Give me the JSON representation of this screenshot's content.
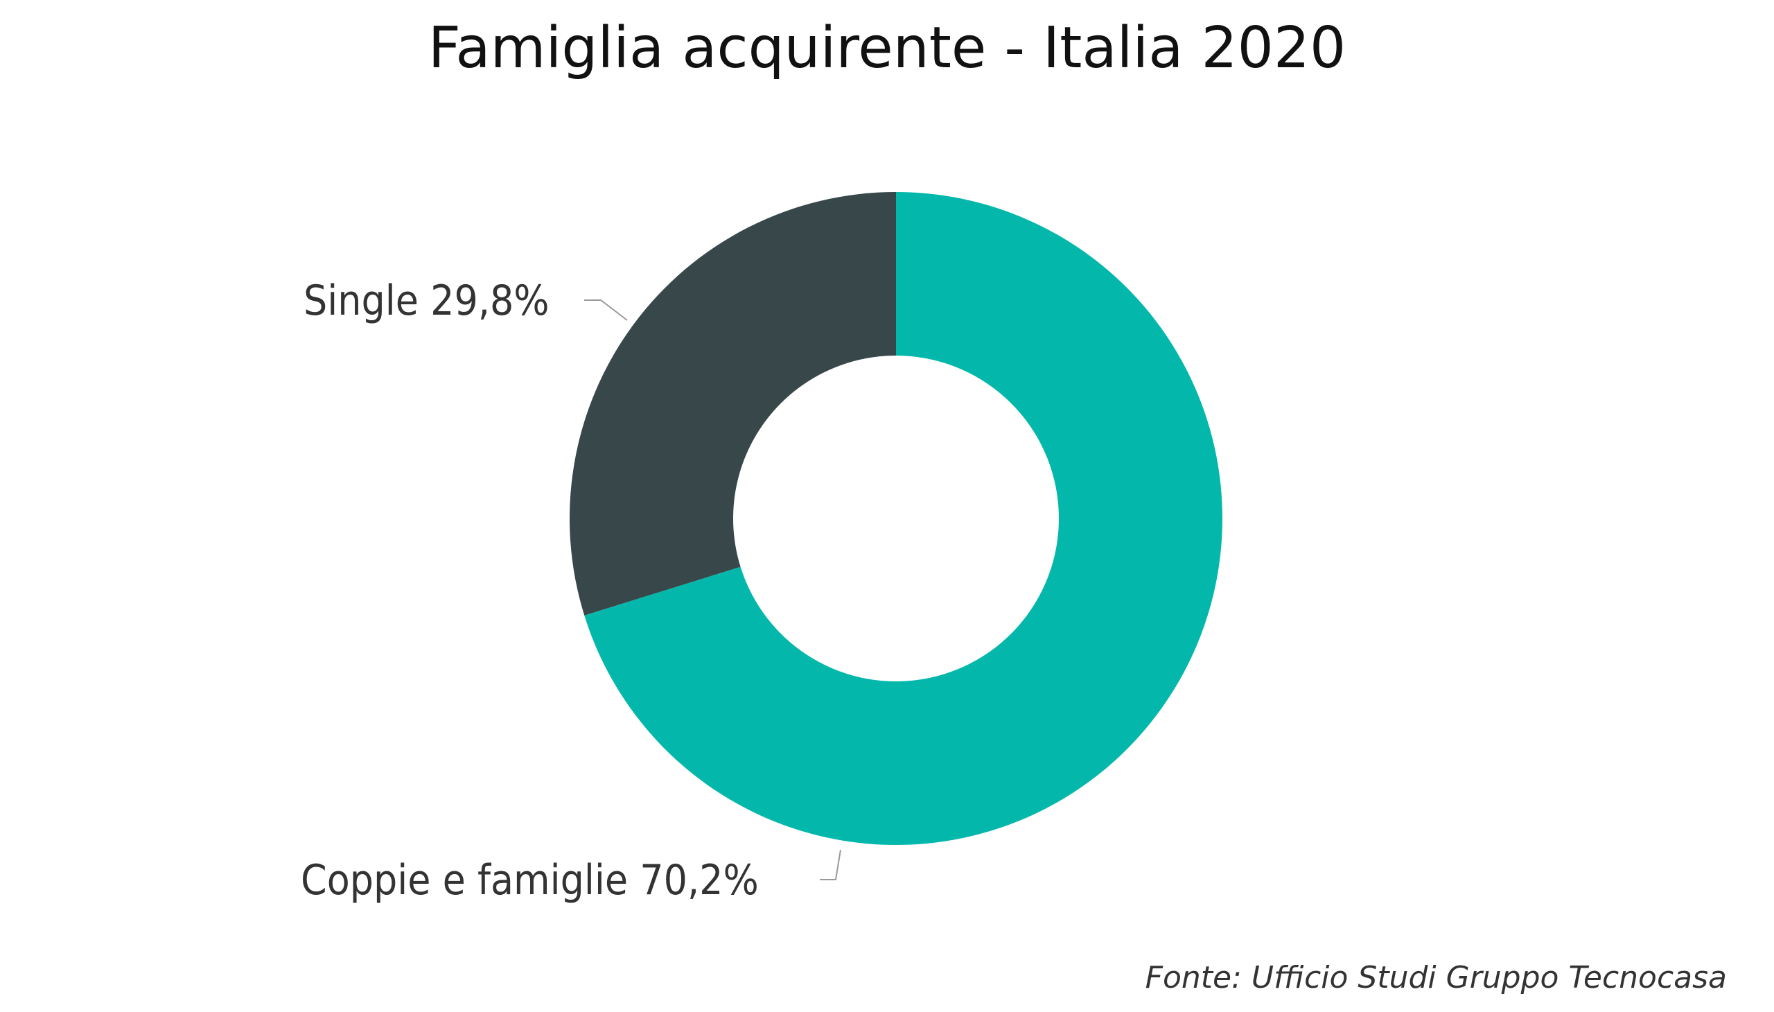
{
  "chart_data": {
    "type": "pie",
    "style": "donut",
    "title": "Famiglia acquirente - Italia 2020",
    "slices": [
      {
        "label": "Single",
        "value": 29.8,
        "value_label": "29,8%",
        "color": "#37474A"
      },
      {
        "label": "Coppie e famiglie",
        "value": 70.2,
        "value_label": "70,2%",
        "color": "#03B8AB"
      }
    ],
    "source": "Fonte: Ufficio Studi Gruppo Tecnocasa"
  }
}
